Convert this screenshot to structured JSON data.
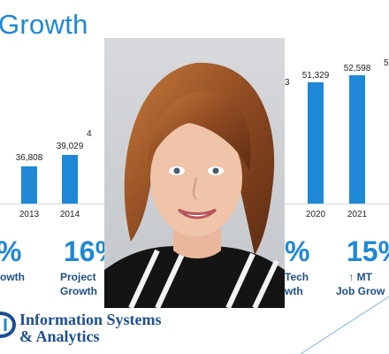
{
  "slide": {
    "title": "Growth",
    "bars": [
      {
        "year": "2013",
        "value": "36,808"
      },
      {
        "year": "2014",
        "value": "39,029"
      },
      {
        "year": "2020",
        "value": "51,329"
      },
      {
        "year": "2021",
        "value": "52,598"
      }
    ],
    "partial_values": {
      "left_cut": "4",
      "right_cut_top": "5",
      "left_of_2020": "3"
    },
    "stats": [
      {
        "pct": "%",
        "caption": "owth"
      },
      {
        "pct": "16%",
        "caption": "Project\nGrowth"
      },
      {
        "pct": "%",
        "caption": "Tech\nwth"
      },
      {
        "pct": "15%",
        "caption": "↑ MT\nJob Grow"
      }
    ],
    "logo": {
      "line1": "Information Systems",
      "line2": "& Analytics"
    }
  },
  "photo": {
    "icon": "person-photo"
  }
}
